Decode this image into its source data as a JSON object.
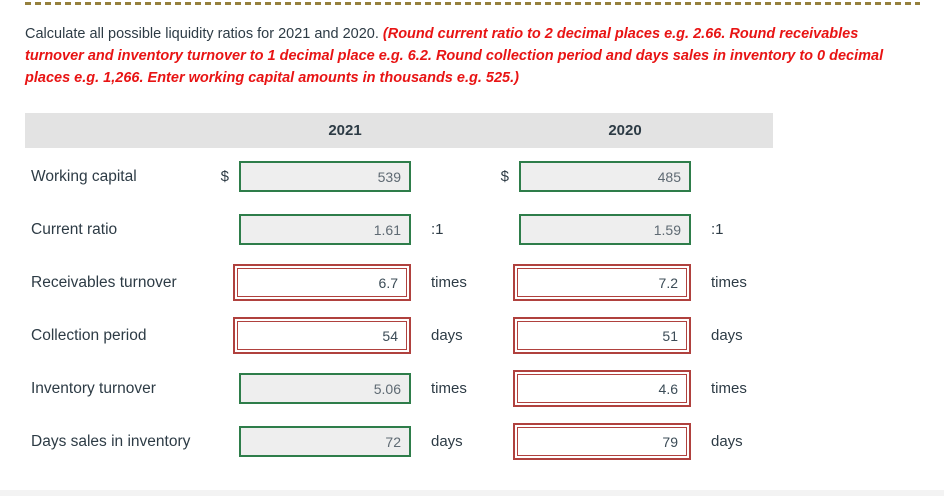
{
  "colors": {
    "text": "#2d3b45",
    "note_red": "#e81414",
    "correct_green": "#2e7d4a",
    "incorrect_red": "#b0413e",
    "input_bg_correct": "#eeeeee",
    "header_bg": "#e3e3e3",
    "dash_gold": "#95803d"
  },
  "question": {
    "intro": "Calculate all possible liquidity ratios for 2021 and 2020.",
    "note": "(Round current ratio to 2 decimal places e.g. 2.66. Round receivables turnover and inventory turnover to 1 decimal place e.g. 6.2. Round collection period and days sales in inventory to 0 decimal places e.g. 1,266. Enter working capital amounts in thousands e.g. 525.)"
  },
  "table": {
    "years": [
      "2021",
      "2020"
    ],
    "rows": [
      {
        "label": "Working capital",
        "prefix": "$",
        "suffix": "",
        "cols": [
          {
            "value": "539",
            "status": "correct"
          },
          {
            "value": "485",
            "status": "correct"
          }
        ]
      },
      {
        "label": "Current ratio",
        "prefix": "",
        "suffix": ":1",
        "cols": [
          {
            "value": "1.61",
            "status": "correct"
          },
          {
            "value": "1.59",
            "status": "correct"
          }
        ]
      },
      {
        "label": "Receivables turnover",
        "prefix": "",
        "suffix": "times",
        "cols": [
          {
            "value": "6.7",
            "status": "incorrect"
          },
          {
            "value": "7.2",
            "status": "incorrect"
          }
        ]
      },
      {
        "label": "Collection period",
        "prefix": "",
        "suffix": "days",
        "cols": [
          {
            "value": "54",
            "status": "incorrect"
          },
          {
            "value": "51",
            "status": "incorrect"
          }
        ]
      },
      {
        "label": "Inventory turnover",
        "prefix": "",
        "suffix": "times",
        "cols": [
          {
            "value": "5.06",
            "status": "correct"
          },
          {
            "value": "4.6",
            "status": "incorrect"
          }
        ]
      },
      {
        "label": "Days sales in inventory",
        "prefix": "",
        "suffix": "days",
        "cols": [
          {
            "value": "72",
            "status": "correct"
          },
          {
            "value": "79",
            "status": "incorrect"
          }
        ]
      }
    ]
  }
}
